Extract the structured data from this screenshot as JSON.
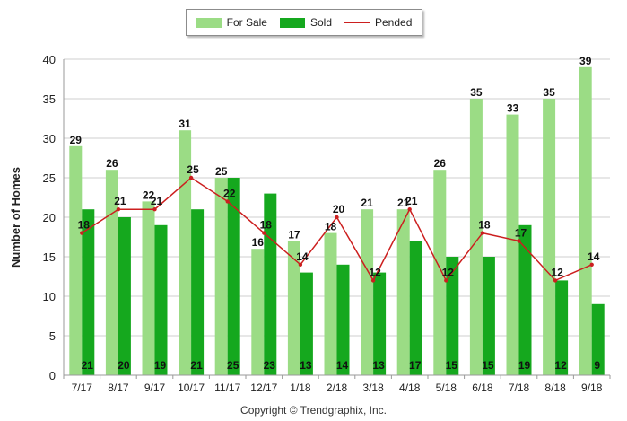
{
  "chart_data": {
    "type": "bar",
    "categories": [
      "7/17",
      "8/17",
      "9/17",
      "10/17",
      "11/17",
      "12/17",
      "1/18",
      "2/18",
      "3/18",
      "4/18",
      "5/18",
      "6/18",
      "7/18",
      "8/18",
      "9/18"
    ],
    "series": [
      {
        "name": "For Sale",
        "kind": "bar",
        "color": "#9bdc85",
        "values": [
          29,
          26,
          22,
          31,
          25,
          16,
          17,
          18,
          21,
          21,
          26,
          35,
          33,
          35,
          39
        ]
      },
      {
        "name": "Sold",
        "kind": "bar",
        "color": "#15a81e",
        "values": [
          21,
          20,
          19,
          21,
          25,
          23,
          13,
          14,
          13,
          17,
          15,
          15,
          19,
          12,
          9
        ]
      },
      {
        "name": "Pended",
        "kind": "line",
        "color": "#cc1f1f",
        "values": [
          18,
          21,
          21,
          25,
          22,
          18,
          14,
          20,
          12,
          21,
          12,
          18,
          17,
          12,
          14
        ]
      }
    ],
    "ylabel": "Number of Homes",
    "xlabel": "",
    "ylim": [
      0,
      40
    ],
    "yticks": [
      0,
      5,
      10,
      15,
      20,
      25,
      30,
      35,
      40
    ],
    "grid": true,
    "legend_position": "top-center"
  },
  "footer": {
    "copyright": "Copyright © Trendgraphix, Inc."
  }
}
